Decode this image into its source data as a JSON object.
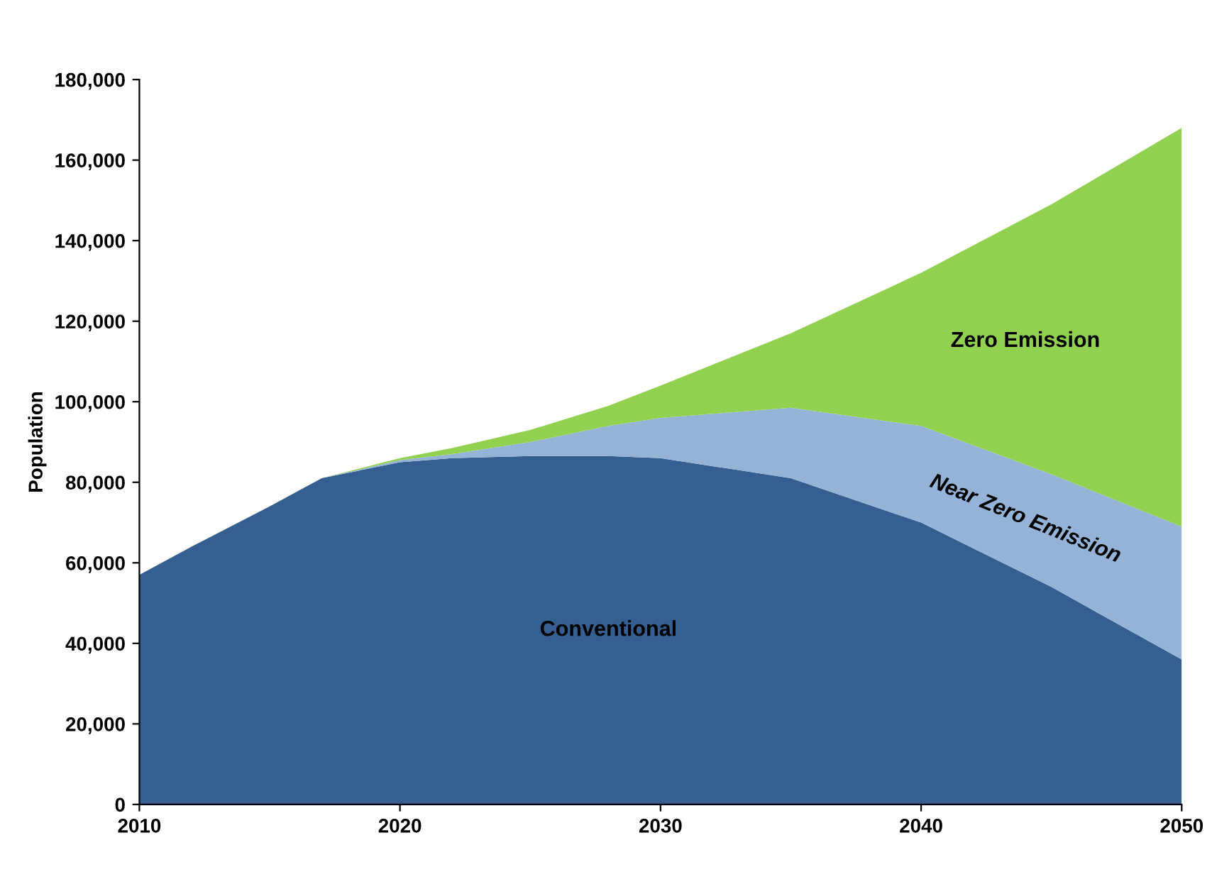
{
  "chart_data": {
    "type": "area",
    "stacked": true,
    "ylabel": "Population",
    "x": [
      2010,
      2012,
      2015,
      2017,
      2020,
      2022,
      2025,
      2028,
      2030,
      2035,
      2040,
      2045,
      2050
    ],
    "series": [
      {
        "name": "Conventional",
        "color": "#365f91",
        "values": [
          57000,
          64000,
          74000,
          81000,
          85000,
          86000,
          86500,
          86500,
          86000,
          81000,
          70000,
          54000,
          36000
        ]
      },
      {
        "name": "Near Zero Emission",
        "color": "#95b3d7",
        "values": [
          0,
          0,
          0,
          0,
          500,
          1000,
          3500,
          7500,
          10000,
          17500,
          24000,
          28000,
          33000
        ]
      },
      {
        "name": "Zero Emission",
        "color": "#92d050",
        "values": [
          0,
          0,
          0,
          0,
          500,
          1500,
          3000,
          5000,
          8000,
          18500,
          38000,
          67000,
          99000
        ]
      }
    ],
    "xlim": [
      2010,
      2050
    ],
    "xticks": [
      2010,
      2020,
      2030,
      2040,
      2050
    ],
    "ylim": [
      0,
      180000
    ],
    "yticks": [
      {
        "value": 0,
        "label": "0"
      },
      {
        "value": 20000,
        "label": "20,000"
      },
      {
        "value": 40000,
        "label": "40,000"
      },
      {
        "value": 60000,
        "label": "60,000"
      },
      {
        "value": 80000,
        "label": "80,000"
      },
      {
        "value": 100000,
        "label": "100,000"
      },
      {
        "value": 120000,
        "label": "120,000"
      },
      {
        "value": 140000,
        "label": "140,000"
      },
      {
        "value": 160000,
        "label": "160,000"
      },
      {
        "value": 180000,
        "label": "180,000"
      }
    ],
    "grid": false,
    "legend": false
  }
}
